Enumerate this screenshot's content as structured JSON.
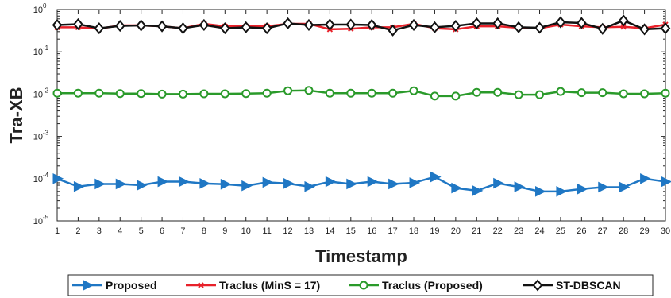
{
  "chart_data": {
    "type": "line",
    "title": "",
    "xlabel": "Timestamp",
    "ylabel": "Tra-XB",
    "y_scale": "log",
    "xlim": [
      1,
      30
    ],
    "ylim": [
      1e-05,
      1
    ],
    "grid": false,
    "legend_position": "bottom",
    "x": [
      1,
      2,
      3,
      4,
      5,
      6,
      7,
      8,
      9,
      10,
      11,
      12,
      13,
      14,
      15,
      16,
      17,
      18,
      19,
      20,
      21,
      22,
      23,
      24,
      25,
      26,
      27,
      28,
      29,
      30
    ],
    "x_tick_labels": [
      "1",
      "2",
      "3",
      "4",
      "5",
      "6",
      "7",
      "8",
      "9",
      "10",
      "11",
      "12",
      "13",
      "14",
      "15",
      "16",
      "17",
      "18",
      "19",
      "20",
      "21",
      "22",
      "23",
      "24",
      "25",
      "26",
      "27",
      "28",
      "29",
      "30"
    ],
    "y_ticks": [
      {
        "value": 1e-05,
        "base": "10",
        "exp": "-5"
      },
      {
        "value": 0.0001,
        "base": "10",
        "exp": "-4"
      },
      {
        "value": 0.001,
        "base": "10",
        "exp": "-3"
      },
      {
        "value": 0.01,
        "base": "10",
        "exp": "-2"
      },
      {
        "value": 0.1,
        "base": "10",
        "exp": "-1"
      },
      {
        "value": 1,
        "base": "10",
        "exp": "0"
      }
    ],
    "series": [
      {
        "name": "Proposed",
        "color": "#1f77c4",
        "marker": "triangle-right",
        "values": [
          0.0001,
          6.5e-05,
          7.5e-05,
          7.5e-05,
          7e-05,
          8.5e-05,
          8.5e-05,
          7.7e-05,
          7.4e-05,
          6.8e-05,
          8.2e-05,
          7.7e-05,
          6.5e-05,
          8.5e-05,
          7.5e-05,
          8.5e-05,
          7.5e-05,
          8e-05,
          0.00011,
          6e-05,
          5.2e-05,
          7.8e-05,
          6.4e-05,
          5e-05,
          5e-05,
          5.7e-05,
          6.3e-05,
          6.3e-05,
          0.0001,
          8.5e-05
        ]
      },
      {
        "name": "Traclus (MinS = 17)",
        "color": "#e8212a",
        "marker": "x",
        "values": [
          0.38,
          0.38,
          0.35,
          0.42,
          0.42,
          0.4,
          0.36,
          0.46,
          0.4,
          0.4,
          0.4,
          0.46,
          0.46,
          0.34,
          0.35,
          0.38,
          0.38,
          0.46,
          0.36,
          0.34,
          0.4,
          0.4,
          0.37,
          0.36,
          0.44,
          0.4,
          0.38,
          0.39,
          0.36,
          0.44
        ]
      },
      {
        "name": "Traclus (Proposed)",
        "color": "#2a9a2a",
        "marker": "circle",
        "values": [
          0.0105,
          0.0105,
          0.0105,
          0.0103,
          0.0103,
          0.01,
          0.01,
          0.0102,
          0.0102,
          0.0103,
          0.0105,
          0.012,
          0.0122,
          0.0105,
          0.0105,
          0.0105,
          0.0105,
          0.012,
          0.009,
          0.009,
          0.011,
          0.011,
          0.0097,
          0.0097,
          0.0115,
          0.0108,
          0.0108,
          0.0102,
          0.0102,
          0.0105
        ]
      },
      {
        "name": "ST-DBSCAN",
        "color": "#111111",
        "marker": "diamond",
        "values": [
          0.43,
          0.45,
          0.36,
          0.41,
          0.42,
          0.4,
          0.36,
          0.43,
          0.36,
          0.38,
          0.36,
          0.47,
          0.43,
          0.44,
          0.44,
          0.43,
          0.32,
          0.43,
          0.38,
          0.41,
          0.47,
          0.47,
          0.38,
          0.37,
          0.5,
          0.48,
          0.35,
          0.55,
          0.34,
          0.36
        ]
      }
    ]
  }
}
